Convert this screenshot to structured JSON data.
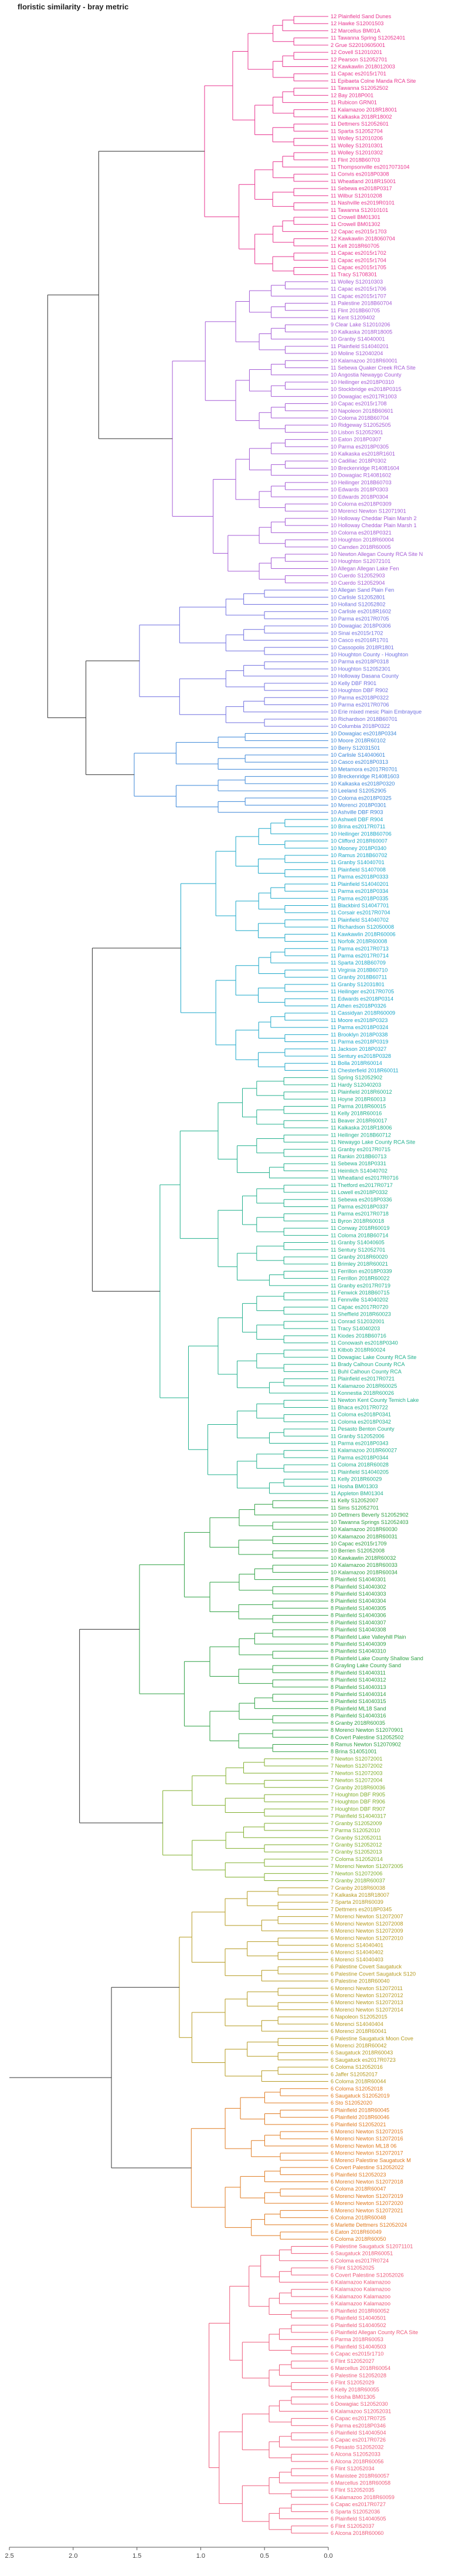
{
  "chart_data": {
    "type": "dendrogram",
    "title": "floristic similarity - bray metric",
    "xlabel": "",
    "ylabel": "",
    "orientation": "horizontal",
    "xlim": [
      2.5,
      0
    ],
    "ticks": [
      "2.5",
      "2.0",
      "1.5",
      "1.0",
      "0.5",
      "0.0"
    ],
    "tick_values": [
      2.5,
      2.0,
      1.5,
      1.0,
      0.5,
      0.0
    ],
    "colors": {
      "root": "#333333",
      "c1": "#e8348f",
      "c2": "#a45ad6",
      "c3": "#6f6fe0",
      "c4": "#3a86d8",
      "c5": "#1aa7c9",
      "c6": "#20b08d",
      "c7": "#2ea043",
      "c8": "#7fae2a",
      "c9": "#b59a1f",
      "c10": "#e07a1f",
      "c11": "#ee5a7a"
    },
    "clusters": [
      {
        "name": "c1",
        "color_key": "c1",
        "height": 1.0,
        "labels": [
          "12 Plainfield Sand Dunes",
          "12 Hawke S12001503",
          "12 Marcellus BM01A",
          "11 Tawanna Spring S12052401",
          "2 Grue S22010605001",
          "12 Covell S12010201",
          "12 Pearson S12052701",
          "12 Kawkawlin 2018012003",
          "11 Capac es2015r1701",
          "11 Epibaeta Colne Manda RCA Site",
          "11 Tawanna S12052502",
          "12 Bay 2018P001",
          "11 Rubicon GRN01",
          "11 Kalamazoo 2018R18001",
          "11 Kalkaska 2018R18002",
          "11 Dettmers S12052601",
          "11 Sparta S12052704",
          "11 Wolley S12010206",
          "11 Wolley S12010301",
          "11 Wolley S12010302",
          "11 Flint 2018B60703",
          "11 Thompsonville es2017073104",
          "11 Convis es2018P0308",
          "11 Wheatland 2018R15001",
          "11 Sebewa es2018P0317",
          "11 Wilbur S12010208",
          "11 Nashville es2019R0101",
          "11 Tawanna S12010101",
          "11 Crowell BM01301",
          "11 Crowell BM01302",
          "12 Capac es2015r1703",
          "12 Kawkawlin 2018060704",
          "11 Kelt 2018R60705",
          "11 Capac es2015r1702",
          "11 Capac es2015r1704",
          "11 Capac es2015r1705",
          "11 Tracy S1708301"
        ]
      },
      {
        "name": "c2",
        "color_key": "c2",
        "height": 1.3,
        "labels": [
          "11 Wolley S12010303",
          "11 Capac es2015r1706",
          "11 Capac es2015r1707",
          "11 Palestine 2018B60704",
          "11 Flint 2018B60705",
          "11 Kent S1209402",
          "9 Clear Lake S12010206",
          "10 Kalkaska 2018R18005",
          "10 Granby S14040001",
          "11 Plainfield S14040201",
          "10 Moline S12040204",
          "10 Kalamazoo 2018R60001",
          "11 Sebewa Quaker Creek RCA Site",
          "10 Angostia Newaygo County",
          "10 Heilinger es2018P0310",
          "10 Stockbridge es2018P0315",
          "10 Dowagiac es2017R1003",
          "10 Capac es2015r1708",
          "10 Napoleon 2018B60601",
          "10 Coloma 2018B60704",
          "10 Ridgeway S12052505",
          "10 Lisbon S12052901",
          "10 Eaton 2018P0307",
          "10 Parma es2018P0305",
          "10 Kalkaska es2018R1601",
          "10 Cadillac 2018P0302",
          "10 Breckenridge R14081604",
          "10 Dowagiac R14081602",
          "10 Heilinger 2018B60703",
          "10 Edwards 2018P0303",
          "10 Edwards 2018P0304",
          "10 Coloma es2018P0309",
          "10 Morenci Newton S12071901",
          "10 Holloway Cheddar Plain Marsh 2",
          "10 Holloway Cheddar Plain Marsh 1",
          "10 Coloma es2018P0321",
          "10 Houghton 2018R60004",
          "10 Camden 2018R60005",
          "10 Newton Allegan County RCA Site N",
          "10 Houghton S12072101",
          "10 Allegan Allegan Lake Fen",
          "10 Cuerdo S12052903",
          "10 Cuerdo S12052904"
        ]
      },
      {
        "name": "c3",
        "color_key": "c3",
        "height": 1.55,
        "labels": [
          "10 Allegan Sand Plain Fen",
          "10 Carlisle S12052801",
          "10 Holland S12052802",
          "10 Carlisle es2018R1602",
          "10 Parma es2017R0705",
          "10 Dowagiac 2018P0306",
          "10 Sinai es2015r1702",
          "10 Casco es2016R1701",
          "10 Cassopolis 2018R1801",
          "10 Houghton County - Houghton",
          "10 Parma es2018P0318",
          "10 Houghton S12052301",
          "10 Holloway Dasana County",
          "10 Kelly DBF R901",
          "10 Houghton DBF R902",
          "10 Parma es2018P0322",
          "10 Parma es2017R0706",
          "10 Erie mixed mesic Plain Embrayque",
          "10 Richardson 2018B60701",
          "10 Columbia 2018P0322"
        ]
      },
      {
        "name": "c4",
        "color_key": "c4",
        "height": 1.7,
        "labels": [
          "10 Dowagiac es2018P0334",
          "10 Moore 2018R60102",
          "10 Berry S12031501",
          "10 Carlisle S14040601",
          "10 Casco es2018P0313",
          "10 Metamora es2017R0701",
          "10 Breckenridge R14081603",
          "10 Kalkaska es2018P0320",
          "10 Leeland S12052905",
          "10 Coloma es2018P0325",
          "10 Morenci 2018P0301",
          "10 Ashville DBF R903"
        ]
      },
      {
        "name": "c5",
        "color_key": "c5",
        "height": 1.25,
        "labels": [
          "10 Ashwell DBF R904",
          "10 Brina es2017R0711",
          "10 Heilinger 2018B60706",
          "10 Clifford 2018R60007",
          "10 Mooney 2018P0340",
          "10 Ramus 2018B60702",
          "11 Granby S14040701",
          "11 Plainfield S1407008",
          "11 Parma es2018P0333",
          "11 Plainfield S14040201",
          "11 Parma es2018P0334",
          "11 Parma es2018P0335",
          "11 Blackbird S14047701",
          "11 Corsair es2017R0704",
          "11 Plainfield S14040702",
          "11 Richardson S12050008",
          "11 Kawkawlin 2018R60006",
          "11 Norfolk 2018R60008",
          "11 Parma es2017R0713",
          "11 Parma es2017R0714",
          "11 Sparta 2018B60709",
          "11 Virginia 2018B60710",
          "11 Granby 2018B60711",
          "11 Granby S12031801",
          "11 Heilinger es2017R0705",
          "11 Edwards es2018P0314",
          "11 Athen es2018P0326",
          "11 Cassidyan 2018R60009",
          "11 Moore es2018P0323",
          "11 Parma es2018P0324",
          "11 Brooklyn 2018P0338",
          "11 Parma es2018P0319",
          "11 Jackson 2018P0327",
          "11 Sentury es2018P0328",
          "11 Bolla 2018R60014",
          "11 Chesterfield 2018R60011"
        ]
      },
      {
        "name": "c6",
        "color_key": "c6",
        "height": 1.45,
        "labels": [
          "11 Spring S12052902",
          "11 Hardy S12040203",
          "11 Plainfield 2018R60012",
          "11 Hoyne 2018R60013",
          "11 Parma 2018R60015",
          "11 Kelly 2018R60016",
          "11 Beaver 2018R60017",
          "11 Kalkaska 2018R18006",
          "11 Heilinger 2018B60712",
          "11 Newaygo Lake County RCA Site",
          "11 Granby es2017R0715",
          "11 Rankin 2018B60713",
          "11 Sebewa 2018P0331",
          "11 Heimlich S14040702",
          "11 Wheatland es2017R0716",
          "11 Thetford es2017R0717",
          "11 Lowell es2018P0332",
          "11 Sebewa es2018P0336",
          "11 Parma es2018P0337",
          "11 Parma es2017R0718",
          "11 Byron 2018R60018",
          "11 Conway 2018R60019",
          "11 Coloma 2018B60714",
          "11 Granby S14040605",
          "11 Sentury S12052701",
          "11 Granby 2018R60020",
          "11 Brimley 2018R60021",
          "11 Ferrillon es2018P0339",
          "11 Ferrillon 2018R60022",
          "11 Granby es2017R0719",
          "11 Fenwick 2018B60715",
          "11 Fennville S14040202",
          "11 Capac es2017R0720",
          "11 Sheffield 2018R60023",
          "11 Conrad S12032001",
          "11 Tracy S14040203",
          "11 Kiodes 2018B60716",
          "11 Conowash es2018P0340",
          "11 Kitbob 2018R60024",
          "11 Dowagiac Lake County RCA Site",
          "11 Brady Calhoun County RCA",
          "11 Buhl Calhoun County RCA",
          "11 Plainfield es2017R0721",
          "11 Kalamazoo 2018R60025",
          "11 Konnestia 2018R60026",
          "11 Newton Kent County Temich Lake",
          "11 Bhaca es2017R0722",
          "11 Coloma es2018P0341",
          "11 Coloma es2018P0342",
          "11 Pesasto Benton County",
          "11 Granby S12052006",
          "11 Parma es2018P0343",
          "11 Kalamazoo 2018R60027",
          "11 Parma es2018P0344",
          "11 Coloma 2018R60028",
          "11 Plainfield S14040205",
          "11 Kelly 2018R60029",
          "11 Hosha BM01303",
          "11 Appleton BM01304"
        ]
      },
      {
        "name": "c7",
        "color_key": "c7",
        "height": 1.6,
        "labels": [
          "11 Kelly S12052007",
          "11 Sims S12052701",
          "10 Dettmers Beverly S12052902",
          "10 Tawanna Springs S12052403",
          "10 Kalamazoo 2018R60030",
          "10 Kalamazoo 2018R60031",
          "10 Capac es2015r1709",
          "10 Berrien S12052008",
          "10 Kawkawlin 2018R60032",
          "10 Kalamazoo 2018R60033",
          "10 Kalamazoo 2018R60034",
          "8 Plainfield S14040301",
          "8 Plainfield S14040302",
          "8 Plainfield S14040303",
          "8 Plainfield S14040304",
          "8 Plainfield S14040305",
          "8 Plainfield S14040306",
          "8 Plainfield S14040307",
          "8 Plainfield S14040308",
          "8 Plainfield Lake Valleyhill Plain",
          "8 Plainfield S14040309",
          "8 Plainfield S14040310",
          "8 Plainfield Lake County Shallow Sand",
          "8 Grayling Lake County Sand",
          "8 Plainfield S14040311",
          "8 Plainfield S14040312",
          "8 Plainfield S14040313",
          "8 Plainfield S14040314",
          "8 Plainfield S14040315",
          "8 Plainfield ML18 Sand",
          "8 Plainfield S14040316",
          "8 Granby 2018R60035",
          "8 Morenci Newton S12070901",
          "8 Covert Palestine S12052502",
          "8 Ramus Newton S12070902",
          "8 Brina S14051001"
        ]
      },
      {
        "name": "c8",
        "color_key": "c8",
        "height": 1.5,
        "labels": [
          "7 Newton S12072001",
          "7 Newton S12072002",
          "7 Newton S12072003",
          "7 Newton S12072004",
          "7 Granby 2018R60036",
          "7 Houghton DBF R905",
          "7 Houghton DBF R906",
          "7 Houghton DBF R907",
          "7 Plainfield S14040317",
          "7 Granby S12052009",
          "7 Parma S12052010",
          "7 Granby S12052011",
          "7 Granby S12052012",
          "7 Granby S12052013",
          "7 Coloma S12052014",
          "7 Morenci Newton S12072005",
          "7 Newton S12072006",
          "7 Granby 2018R60037"
        ]
      },
      {
        "name": "c9",
        "color_key": "c9",
        "height": 1.35,
        "labels": [
          "7 Granby 2018R60038",
          "7 Kalkaska 2018R18007",
          "7 Sparta 2018R60039",
          "7 Dettmers es2018P0345",
          "7 Morenci Newton S12072007",
          "6 Morenci Newton S12072008",
          "6 Morenci Newton S12072009",
          "6 Morenci Newton S12072010",
          "6 Morenci S14040401",
          "6 Morenci S14040402",
          "6 Morenci S14040403",
          "6 Palestine Covert Saugatuck",
          "6 Palestine Covert Saugatuck S120",
          "6 Palestine 2018R60040",
          "6 Morenci Newton S12072011",
          "6 Morenci Newton S12072012",
          "6 Morenci Newton S12072013",
          "6 Morenci Newton S12072014",
          "6 Napoleon S12052015",
          "6 Morenci S14040404",
          "6 Morenci 2018R60041",
          "6 Palestine Saugatuck Moon Cove",
          "6 Morenci 2018R60042",
          "6 Saugatuck 2018R60043",
          "6 Saugatuck es2017R0723",
          "6 Coloma S12052016",
          "6 Jaffer S12052017",
          "6 Coloma 2018R60044"
        ]
      },
      {
        "name": "c10",
        "color_key": "c10",
        "height": 1.2,
        "labels": [
          "6 Coloma S12052018",
          "6 Saugatuck S12052019",
          "6 Sto S12052020",
          "6 Plainfield 2018R60045",
          "6 Plainfield 2018R60046",
          "6 Plainfield S12052021",
          "6 Morenci Newton S12072015",
          "6 Morenci Newton S12072016",
          "6 Morenci Newton ML18 06",
          "6 Morenci Newton S12072017",
          "6 Morenci Palestine Saugatuck M",
          "6 Covert Palestine S12052022",
          "6 Plainfield S12052023",
          "6 Morenci Newton S12072018",
          "6 Coloma 2018R60047",
          "6 Morenci Newton S12072019",
          "6 Morenci Newton S12072020",
          "6 Morenci Newton S12072021",
          "6 Coloma 2018R60048",
          "6 Marlette Dettmers S12052024",
          "6 Eaton 2018R60049",
          "6 Coloma 2018R60050"
        ]
      },
      {
        "name": "c11",
        "color_key": "c11",
        "height": 1.1,
        "labels": [
          "6 Palestine Saugatuck S12071101",
          "6 Saugatuck 2018R60051",
          "6 Coloma es2017R0724",
          "6 Flint S12052025",
          "6 Covert Palestine S12052026",
          "6 Kalamazoo Kalamazoo",
          "6 Kalamazoo Kalamazoo",
          "6 Kalamazoo Kalamazoo",
          "6 Kalamazoo Kalamazoo",
          "6 Plainfield 2018R60052",
          "6 Plainfield S14040501",
          "6 Plainfield S14040502",
          "6 Plainfield Allegan County RCA Site",
          "6 Parma 2018R60053",
          "6 Plainfield S14040503",
          "6 Capac es2015r1710",
          "6 Flint S12052027",
          "6 Marcellus 2018R60054",
          "6 Palestine S12052028",
          "6 Flint S12052029",
          "6 Kelly 2018R60055",
          "6 Hosha BM01305",
          "6 Dowagiac S12052030",
          "6 Kalamazoo S12052031",
          "6 Capac es2017R0725",
          "6 Parma es2018P0346",
          "6 Plainfield S14040504",
          "6 Capac es2017R0726",
          "6 Pesasto S12052032",
          "6 Alcona S12052033",
          "6 Alcona 2018R60056",
          "6 Flint S12052034",
          "6 Manistee 2018R60057",
          "6 Marcellus 2018R60058",
          "6 Flint S12052035",
          "6 Kalamazoo 2018R60059",
          "6 Capac es2017R0727",
          "6 Sparta S12052036",
          "6 Plainfield S14040505",
          "6 Flint S12052037",
          "6 Alcona 2018R60060"
        ]
      }
    ],
    "merges": [
      {
        "left": "c1",
        "right": "c2",
        "height": 1.8
      },
      {
        "left": "c3",
        "right": "c4",
        "height": 1.9
      },
      {
        "left": "c12",
        "right": "c13",
        "height": 2.2
      },
      {
        "left": "c5",
        "right": "c6",
        "height": 1.85
      },
      {
        "left": "c7",
        "right": "c8",
        "height": 1.95
      },
      {
        "left": "c9",
        "right": "c10",
        "height": 1.7
      },
      {
        "left": "c18",
        "right": "c11",
        "height": 2.0
      },
      {
        "left": "c17",
        "right": "c19",
        "height": 2.25
      },
      {
        "left": "c16",
        "right": "c20",
        "height": 2.4
      },
      {
        "left": "c14",
        "right": "c21",
        "height": 2.55
      }
    ]
  }
}
